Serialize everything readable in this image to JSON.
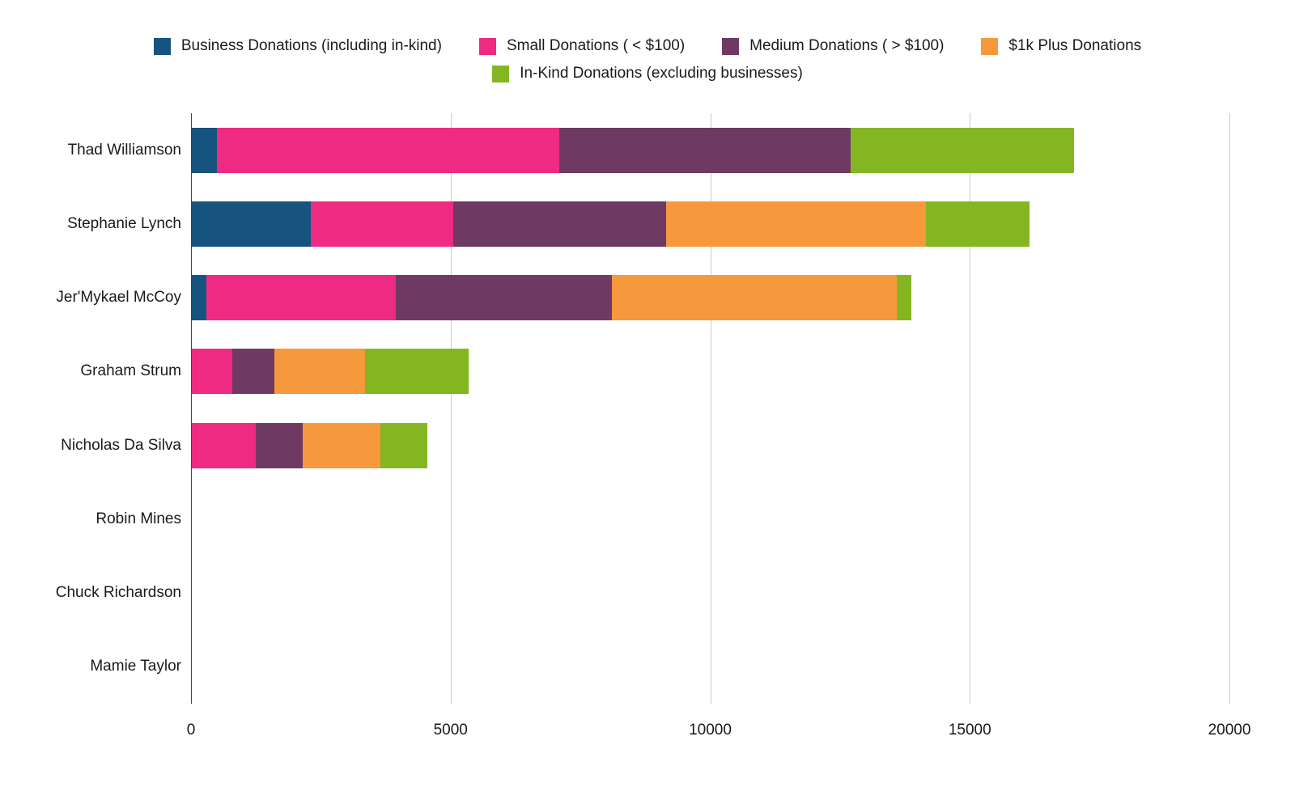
{
  "legend": {
    "items": [
      {
        "label": "Business Donations (including in-kind)",
        "color": "#16537e"
      },
      {
        "label": "Small Donations ( < $100)",
        "color": "#ef2a82"
      },
      {
        "label": "Medium Donations ( > $100)",
        "color": "#6e3a64"
      },
      {
        "label": "$1k Plus Donations",
        "color": "#f6993d"
      },
      {
        "label": "In-Kind Donations (excluding businesses)",
        "color": "#84b622"
      }
    ]
  },
  "chart_data": {
    "type": "bar",
    "orientation": "horizontal",
    "stacked": true,
    "title": "",
    "xlabel": "",
    "ylabel": "",
    "grid": true,
    "legend_position": "top",
    "xlim": [
      0,
      20000
    ],
    "x_ticks": [
      0,
      5000,
      10000,
      15000,
      20000
    ],
    "x_tick_labels": [
      "0",
      "5000",
      "10000",
      "15000",
      "20000"
    ],
    "categories": [
      "Thad Williamson",
      "Stephanie Lynch",
      "Jer'Mykael McCoy",
      "Graham Strum",
      "Nicholas Da Silva",
      "Robin Mines",
      "Chuck Richardson",
      "Mamie Taylor"
    ],
    "series": [
      {
        "name": "Business Donations (including in-kind)",
        "color": "#16537e",
        "values": [
          500,
          2300,
          300,
          0,
          0,
          0,
          0,
          0
        ]
      },
      {
        "name": "Small Donations ( < $100)",
        "color": "#ef2a82",
        "values": [
          6600,
          2750,
          3650,
          800,
          1250,
          0,
          0,
          0
        ]
      },
      {
        "name": "Medium Donations ( > $100)",
        "color": "#6e3a64",
        "values": [
          5600,
          4100,
          4150,
          800,
          900,
          0,
          0,
          0
        ]
      },
      {
        "name": "$1k Plus Donations",
        "color": "#f6993d",
        "values": [
          0,
          5000,
          5500,
          1750,
          1500,
          0,
          0,
          0
        ]
      },
      {
        "name": "In-Kind Donations (excluding businesses)",
        "color": "#84b622",
        "values": [
          4300,
          2000,
          280,
          2000,
          900,
          0,
          0,
          0
        ]
      }
    ],
    "totals": [
      17000,
      16150,
      13880,
      5350,
      4550,
      0,
      0,
      0
    ]
  }
}
